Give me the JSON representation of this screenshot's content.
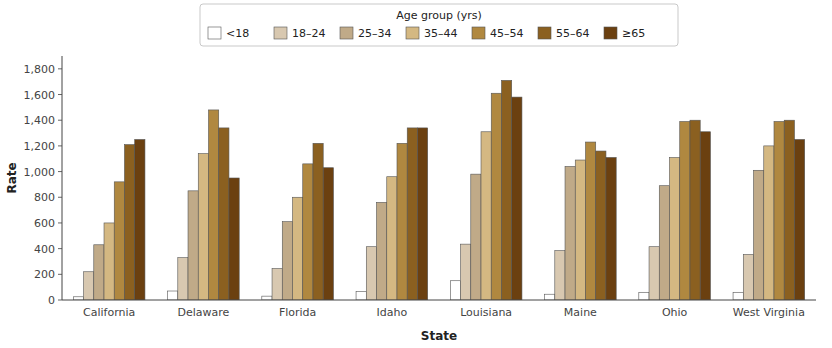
{
  "chart_data": {
    "type": "bar",
    "categories": [
      "California",
      "Delaware",
      "Florida",
      "Idaho",
      "Louisiana",
      "Maine",
      "Ohio",
      "West Virginia"
    ],
    "series": [
      {
        "name": "<18",
        "color": "#ffffff",
        "values": [
          25,
          70,
          30,
          65,
          150,
          45,
          60,
          60
        ]
      },
      {
        "name": "18–24",
        "color": "#d8c8b0",
        "values": [
          220,
          330,
          245,
          415,
          435,
          385,
          415,
          355
        ]
      },
      {
        "name": "25–34",
        "color": "#c0aa88",
        "values": [
          430,
          850,
          610,
          760,
          980,
          1040,
          890,
          1010
        ]
      },
      {
        "name": "35–44",
        "color": "#d4b882",
        "values": [
          600,
          1140,
          800,
          960,
          1310,
          1090,
          1110,
          1200
        ]
      },
      {
        "name": "45–54",
        "color": "#b08840",
        "values": [
          920,
          1480,
          1060,
          1220,
          1610,
          1230,
          1390,
          1390
        ]
      },
      {
        "name": "55–64",
        "color": "#8b6020",
        "values": [
          1210,
          1340,
          1220,
          1340,
          1710,
          1160,
          1400,
          1400
        ]
      },
      {
        "name": "≥65",
        "color": "#6b4010",
        "values": [
          1250,
          950,
          1030,
          1340,
          1580,
          1110,
          1310,
          1250
        ]
      }
    ],
    "xlabel": "State",
    "ylabel": "Rate",
    "ylim": [
      0,
      1900
    ],
    "yticks": [
      0,
      200,
      400,
      600,
      800,
      {
        "value": 1000,
        "label": "1,000"
      },
      {
        "value": 1200,
        "label": "1,200"
      },
      {
        "value": 1400,
        "label": "1,400"
      },
      {
        "value": 1600,
        "label": "1,600"
      },
      {
        "value": 1800,
        "label": "1,800"
      }
    ],
    "legend": "top",
    "legend_title": "Age group (yrs)",
    "grid": false
  }
}
